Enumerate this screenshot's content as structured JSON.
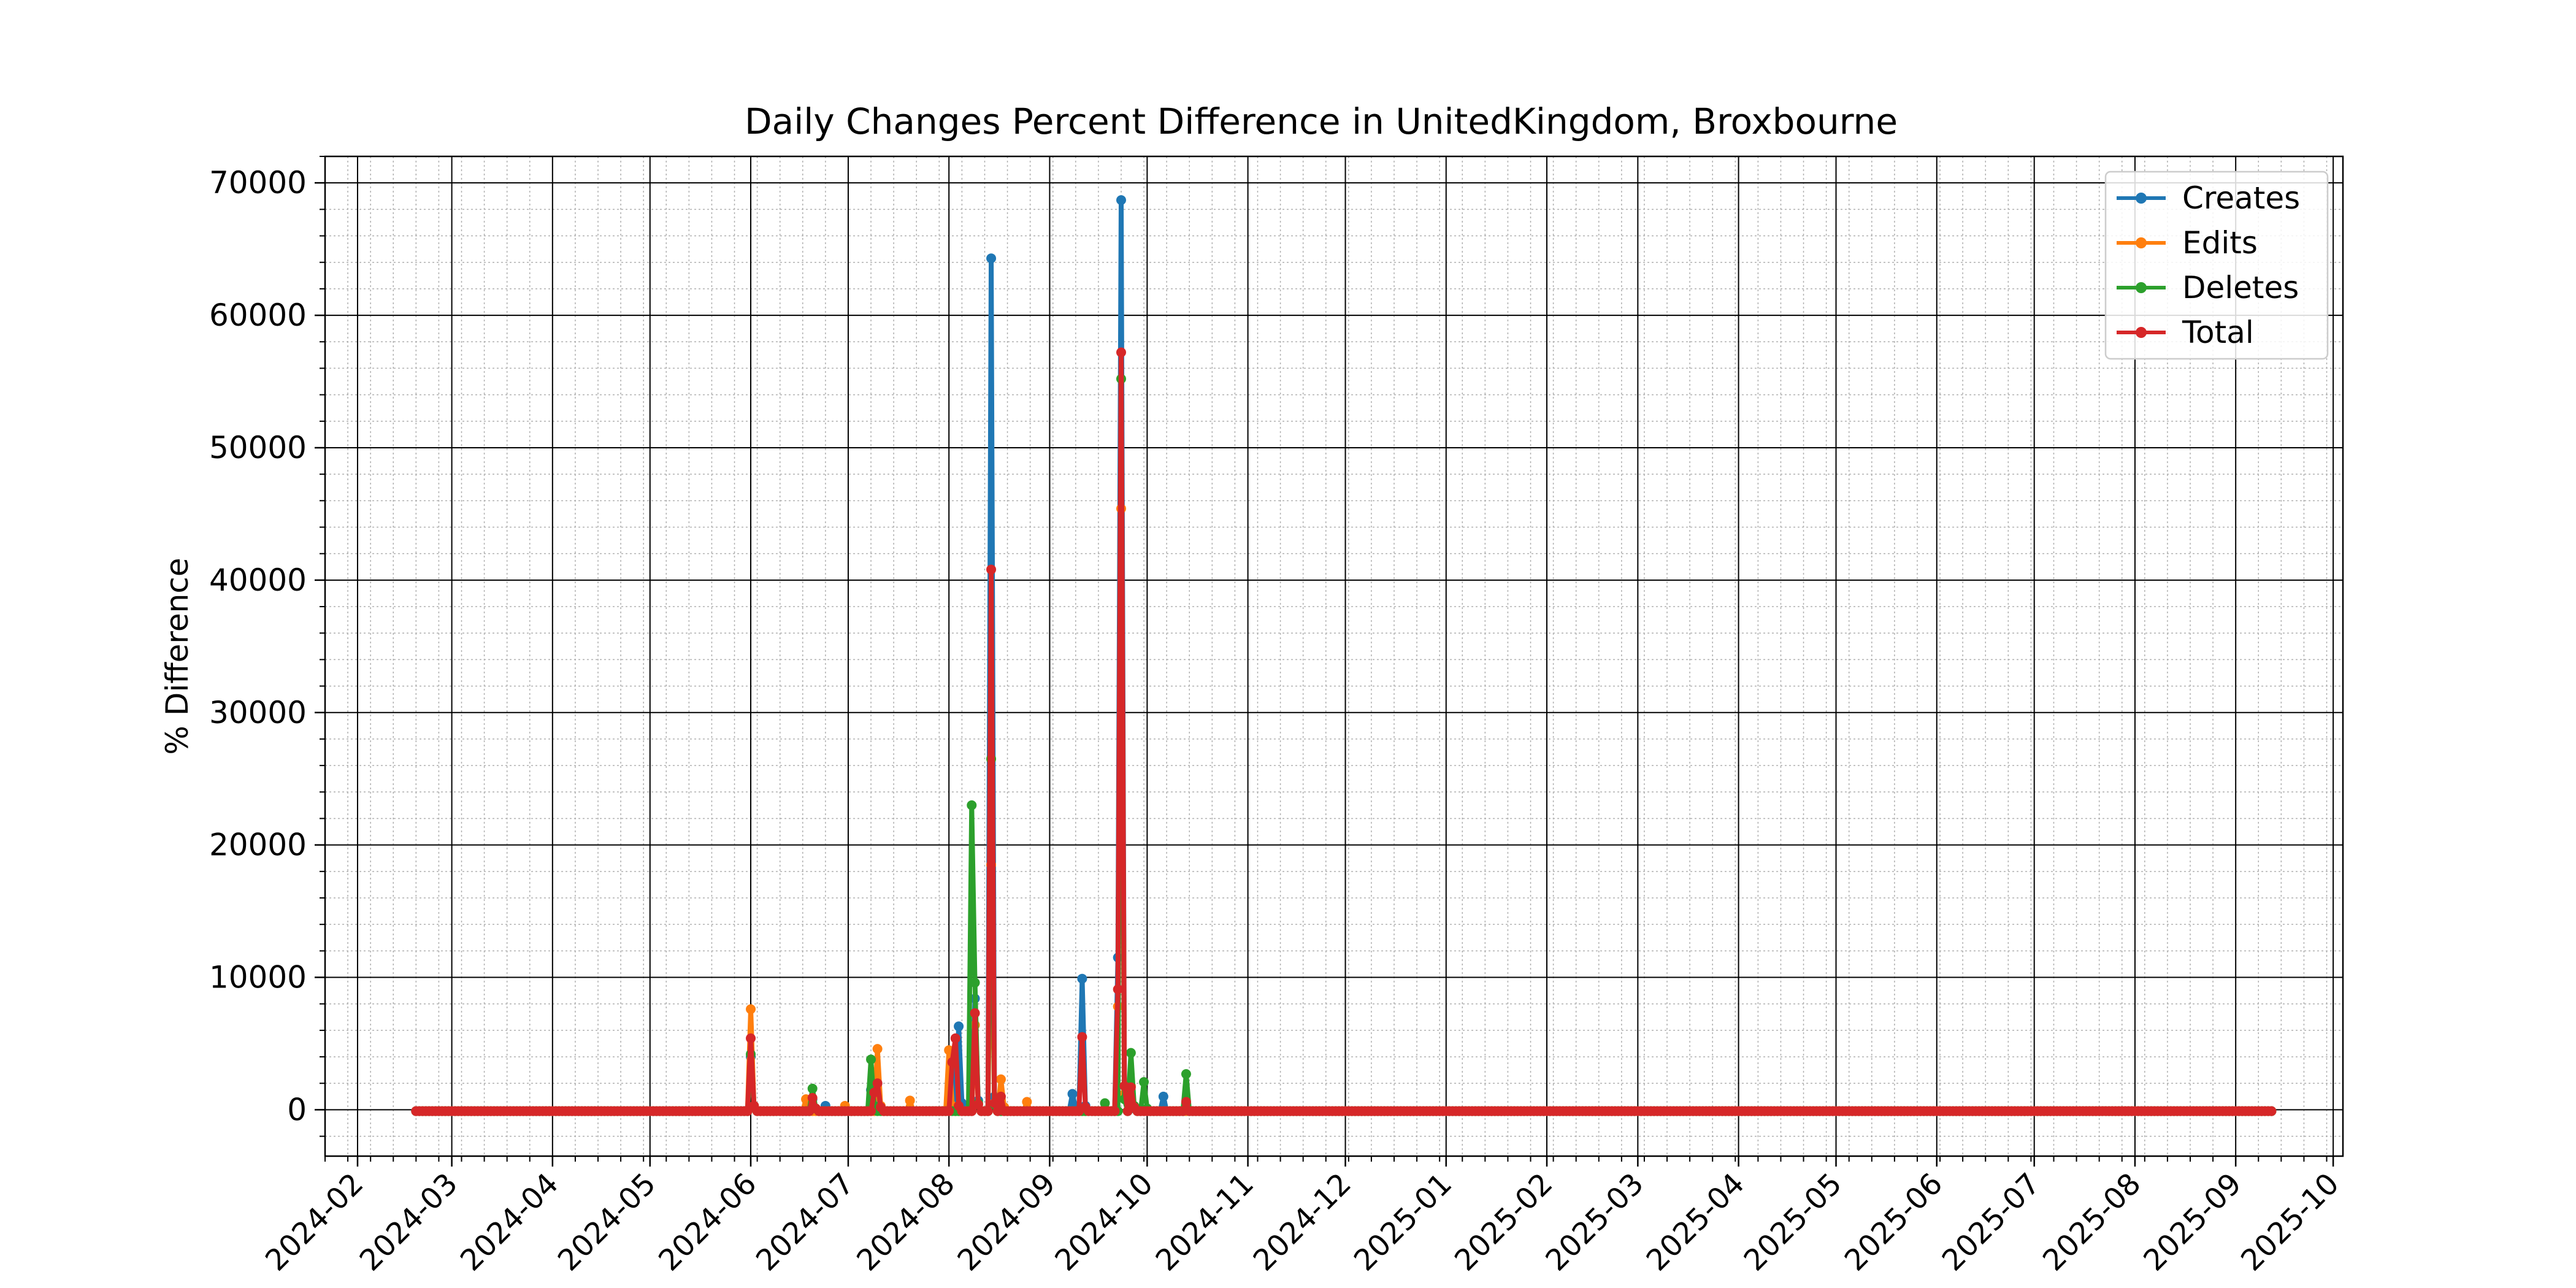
{
  "chart_data": {
    "type": "line",
    "title": "Daily Changes Percent Difference in UnitedKingdom, Broxbourne",
    "xlabel": "",
    "ylabel": "% Difference",
    "x_range": [
      "2024-01-22",
      "2025-10-04"
    ],
    "ylim": [
      -3500,
      72000
    ],
    "y_ticks": [
      0,
      10000,
      20000,
      30000,
      40000,
      50000,
      60000,
      70000
    ],
    "x_ticks": [
      "2024-02-01",
      "2024-03-01",
      "2024-04-01",
      "2024-05-01",
      "2024-06-01",
      "2024-07-01",
      "2024-08-01",
      "2024-09-01",
      "2024-10-01",
      "2024-11-01",
      "2024-12-01",
      "2025-01-01",
      "2025-02-01",
      "2025-03-01",
      "2025-04-01",
      "2025-05-01",
      "2025-06-01",
      "2025-07-01",
      "2025-08-01",
      "2025-09-01",
      "2025-10-01"
    ],
    "x_tick_labels": [
      "2024-02",
      "2024-03",
      "2024-04",
      "2024-05",
      "2024-06",
      "2024-07",
      "2024-08",
      "2024-09",
      "2024-10",
      "2024-11",
      "2024-12",
      "2025-01",
      "2025-02",
      "2025-03",
      "2025-04",
      "2025-05",
      "2025-06",
      "2025-07",
      "2025-08",
      "2025-09",
      "2025-10"
    ],
    "grid": true,
    "legend_position": "top-right",
    "baseline": {
      "start": "2024-02-19",
      "end": "2025-09-12",
      "value": -100
    },
    "series": [
      {
        "name": "Creates",
        "color": "#1f77b4",
        "points": [
          [
            "2024-06-01",
            4000
          ],
          [
            "2024-06-02",
            200
          ],
          [
            "2024-06-20",
            800
          ],
          [
            "2024-06-21",
            100
          ],
          [
            "2024-06-24",
            300
          ],
          [
            "2024-06-25",
            -100
          ],
          [
            "2024-07-08",
            1500
          ],
          [
            "2024-07-09",
            400
          ],
          [
            "2024-07-10",
            2000
          ],
          [
            "2024-07-11",
            200
          ],
          [
            "2024-08-02",
            3500
          ],
          [
            "2024-08-03",
            200
          ],
          [
            "2024-08-04",
            6300
          ],
          [
            "2024-08-05",
            500
          ],
          [
            "2024-08-09",
            8400
          ],
          [
            "2024-08-10",
            700
          ],
          [
            "2024-08-14",
            64300
          ],
          [
            "2024-08-15",
            1000
          ],
          [
            "2024-08-17",
            500
          ],
          [
            "2024-08-18",
            -100
          ],
          [
            "2024-09-08",
            1200
          ],
          [
            "2024-09-09",
            100
          ],
          [
            "2024-09-11",
            9900
          ],
          [
            "2024-09-12",
            300
          ],
          [
            "2024-09-22",
            11500
          ],
          [
            "2024-09-23",
            68700
          ],
          [
            "2024-09-24",
            1200
          ],
          [
            "2024-09-26",
            800
          ],
          [
            "2024-09-27",
            100
          ],
          [
            "2024-10-06",
            1000
          ],
          [
            "2024-10-07",
            -100
          ]
        ]
      },
      {
        "name": "Edits",
        "color": "#ff7f0e",
        "points": [
          [
            "2024-06-01",
            7600
          ],
          [
            "2024-06-02",
            300
          ],
          [
            "2024-06-18",
            800
          ],
          [
            "2024-06-19",
            -100
          ],
          [
            "2024-06-30",
            300
          ],
          [
            "2024-07-01",
            -100
          ],
          [
            "2024-07-10",
            4600
          ],
          [
            "2024-07-11",
            300
          ],
          [
            "2024-07-20",
            700
          ],
          [
            "2024-07-21",
            -100
          ],
          [
            "2024-08-01",
            4500
          ],
          [
            "2024-08-02",
            300
          ],
          [
            "2024-08-09",
            6400
          ],
          [
            "2024-08-10",
            400
          ],
          [
            "2024-08-14",
            18500
          ],
          [
            "2024-08-15",
            500
          ],
          [
            "2024-08-17",
            2300
          ],
          [
            "2024-08-18",
            200
          ],
          [
            "2024-08-25",
            600
          ],
          [
            "2024-08-26",
            -100
          ],
          [
            "2024-09-22",
            7800
          ],
          [
            "2024-09-23",
            45400
          ],
          [
            "2024-09-24",
            1200
          ],
          [
            "2024-09-26",
            1800
          ],
          [
            "2024-09-27",
            200
          ]
        ]
      },
      {
        "name": "Deletes",
        "color": "#2ca02c",
        "points": [
          [
            "2024-06-01",
            4200
          ],
          [
            "2024-06-02",
            200
          ],
          [
            "2024-06-20",
            1600
          ],
          [
            "2024-06-21",
            100
          ],
          [
            "2024-07-08",
            3800
          ],
          [
            "2024-07-09",
            300
          ],
          [
            "2024-08-08",
            23000
          ],
          [
            "2024-08-09",
            9600
          ],
          [
            "2024-08-10",
            500
          ],
          [
            "2024-08-14",
            26500
          ],
          [
            "2024-08-15",
            400
          ],
          [
            "2024-09-18",
            500
          ],
          [
            "2024-09-19",
            -100
          ],
          [
            "2024-09-23",
            55200
          ],
          [
            "2024-09-24",
            800
          ],
          [
            "2024-09-26",
            4300
          ],
          [
            "2024-09-27",
            300
          ],
          [
            "2024-09-30",
            2100
          ],
          [
            "2024-10-01",
            100
          ],
          [
            "2024-10-13",
            2700
          ],
          [
            "2024-10-14",
            -100
          ]
        ]
      },
      {
        "name": "Total",
        "color": "#d62728",
        "points": [
          [
            "2024-06-01",
            5400
          ],
          [
            "2024-06-02",
            300
          ],
          [
            "2024-06-20",
            900
          ],
          [
            "2024-06-21",
            100
          ],
          [
            "2024-07-09",
            1300
          ],
          [
            "2024-07-10",
            2000
          ],
          [
            "2024-07-11",
            200
          ],
          [
            "2024-08-02",
            3600
          ],
          [
            "2024-08-03",
            5400
          ],
          [
            "2024-08-04",
            300
          ],
          [
            "2024-08-09",
            7300
          ],
          [
            "2024-08-10",
            400
          ],
          [
            "2024-08-14",
            40800
          ],
          [
            "2024-08-15",
            500
          ],
          [
            "2024-08-17",
            1000
          ],
          [
            "2024-08-18",
            -100
          ],
          [
            "2024-09-11",
            5500
          ],
          [
            "2024-09-12",
            200
          ],
          [
            "2024-09-22",
            9100
          ],
          [
            "2024-09-23",
            57200
          ],
          [
            "2024-09-24",
            1800
          ],
          [
            "2024-09-26",
            1700
          ],
          [
            "2024-09-27",
            200
          ],
          [
            "2024-10-13",
            600
          ],
          [
            "2024-10-14",
            -100
          ]
        ]
      }
    ]
  }
}
